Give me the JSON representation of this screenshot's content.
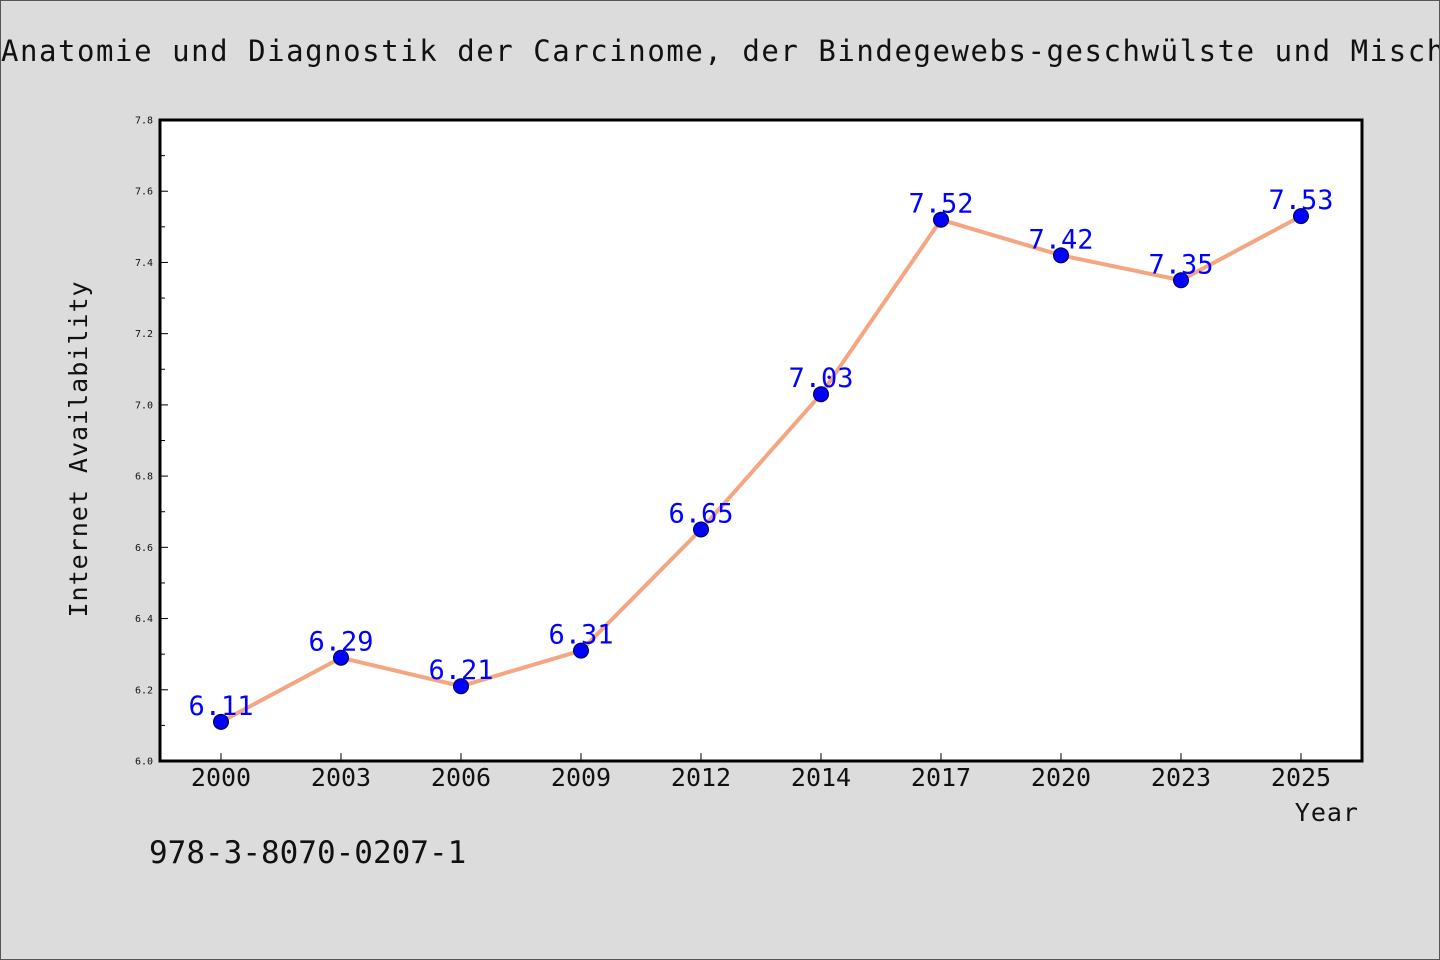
{
  "chart_data": {
    "type": "line",
    "title": "Anatomie und Diagnostik der Carcinome, der Bindegewebs-geschwülste und Mischgeschwülste",
    "xlabel": "Year",
    "ylabel": "Internet Availability",
    "categories": [
      "2000",
      "2003",
      "2006",
      "2009",
      "2012",
      "2014",
      "2017",
      "2020",
      "2023",
      "2025"
    ],
    "series": [
      {
        "values": [
          6.11,
          6.29,
          6.21,
          6.31,
          6.65,
          7.03,
          7.52,
          7.42,
          7.35,
          7.53
        ]
      }
    ],
    "data_labels": [
      "6.11",
      "6.29",
      "6.21",
      "6.31",
      "6.65",
      "7.03",
      "7.52",
      "7.42",
      "7.35",
      "7.53"
    ],
    "ylim": [
      6.0,
      7.8
    ],
    "yticks": [
      "6.0",
      "6.2",
      "6.4",
      "6.6",
      "6.8",
      "7.0",
      "7.2",
      "7.4",
      "7.6",
      "7.8"
    ],
    "ytick_values": [
      6.0,
      6.2,
      6.4,
      6.6,
      6.8,
      7.0,
      7.2,
      7.4,
      7.6,
      7.8
    ],
    "grid": false,
    "colors": {
      "line": "#f4a582",
      "marker": "#0000ff",
      "data_label": "#0000ff",
      "plot_background": "#ffffff",
      "figure_background": "#dcdcdc"
    }
  },
  "footer": {
    "isbn": "978-3-8070-0207-1"
  }
}
